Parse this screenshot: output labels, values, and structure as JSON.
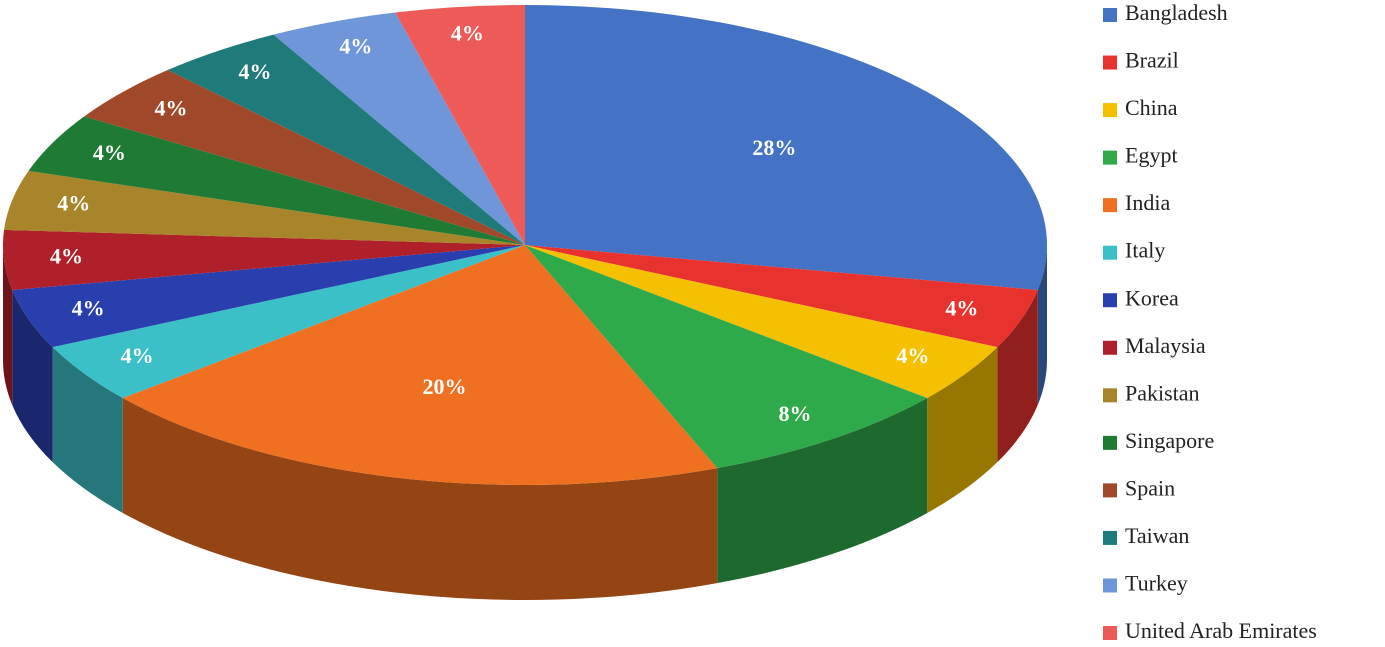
{
  "chart_data": {
    "type": "pie3d",
    "categories": [
      "Bangladesh",
      "Brazil",
      "China",
      "Egypt",
      "India",
      "Italy",
      "Korea",
      "Malaysia",
      "Pakistan",
      "Singapore",
      "Spain",
      "Taiwan",
      "Turkey",
      "United Arab Emirates"
    ],
    "values": [
      28,
      4,
      4,
      8,
      20,
      4,
      4,
      4,
      4,
      4,
      4,
      4,
      4,
      4
    ],
    "value_labels": [
      "28%",
      "4%",
      "4%",
      "8%",
      "20%",
      "4%",
      "4%",
      "4%",
      "4%",
      "4%",
      "4%",
      "4%",
      "4%",
      "4%"
    ],
    "colors": [
      "#4472c4",
      "#e8322e",
      "#f5c000",
      "#2eaa4a",
      "#f07021",
      "#3cc0c8",
      "#2a3fae",
      "#b0202a",
      "#a8842a",
      "#1f7a33",
      "#a0482a",
      "#1f7a7a",
      "#6f96d8",
      "#ee5a58"
    ],
    "legend": "right"
  }
}
